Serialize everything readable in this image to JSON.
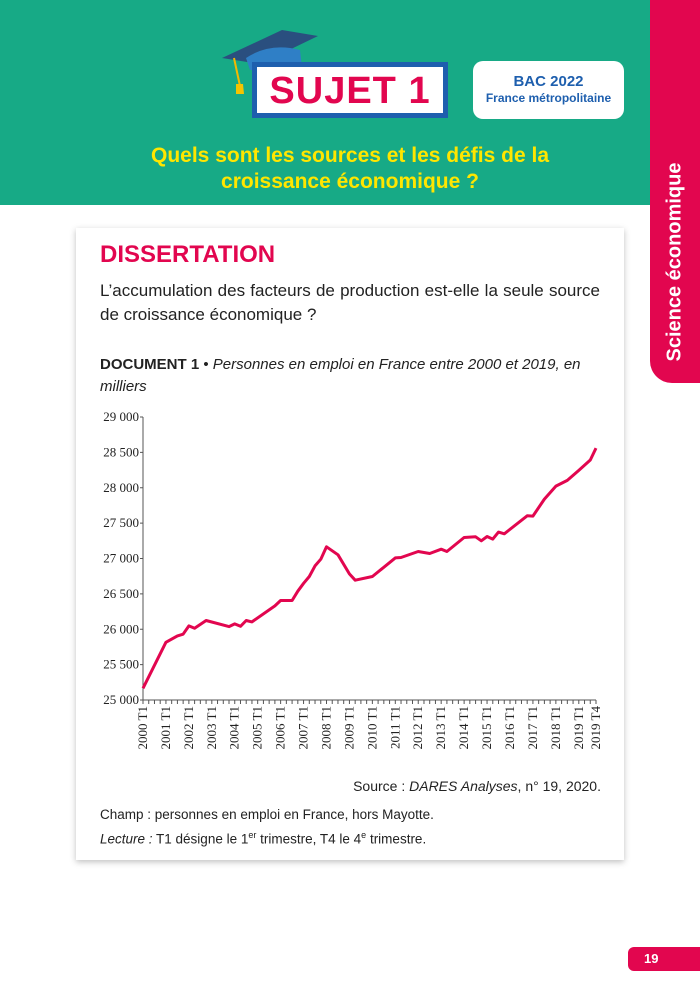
{
  "header": {
    "subject_label": "SUJET 1",
    "exam": "BAC 2022",
    "location": "France métropolitaine",
    "question": "Quels sont les sources et les défis de la croissance économique ?",
    "icon": "graduation-cap-icon"
  },
  "side_tab": {
    "label": "Science économique"
  },
  "colors": {
    "brand_green": "#17aa86",
    "accent_magenta": "#e2064f",
    "blue": "#1e5fae",
    "title_yellow": "#ffe600"
  },
  "exercise": {
    "type": "DISSERTATION",
    "prompt": "L’accumulation des facteurs de production est-elle la seule source de croissance économique ?"
  },
  "document": {
    "label": "DOCUMENT 1",
    "separator": " • ",
    "caption": "Personnes en emploi en France entre 2000 et 2019, en milliers",
    "source_prefix": "Source : ",
    "source_title": "DARES Analyses",
    "source_suffix": ", n° 19, 2020.",
    "champ": "Champ : personnes en emploi en France, hors Mayotte.",
    "lecture_label": "Lecture :",
    "lecture_text_1": " T1 désigne le 1",
    "lecture_sup_1": "er",
    "lecture_text_2": " trimestre, T4 le 4",
    "lecture_sup_2": "e",
    "lecture_text_3": " trimestre."
  },
  "chart_data": {
    "type": "line",
    "title": "",
    "xlabel": "",
    "ylabel": "",
    "ylim": [
      25000,
      29000
    ],
    "yticks": [
      25000,
      25500,
      26000,
      26500,
      27000,
      27500,
      28000,
      28500,
      29000
    ],
    "ytick_labels": [
      "25 000",
      "25 500",
      "26 000",
      "26 500",
      "27 000",
      "27 500",
      "28 000",
      "28 500",
      "29 000"
    ],
    "xtick_labels": [
      "2000 T1",
      "2001 T1",
      "2002 T1",
      "2003 T1",
      "2004 T1",
      "2005 T1",
      "2006 T1",
      "2007 T1",
      "2008 T1",
      "2009 T1",
      "2010 T1",
      "2011 T1",
      "2012 T1",
      "2013 T1",
      "2014 T1",
      "2015 T1",
      "2016 T1",
      "2017 T1",
      "2018 T1",
      "2019 T1",
      "2019 T4"
    ],
    "grid": false,
    "line_color": "#e2064f",
    "points": [
      {
        "x": "2000 T1",
        "y": 25165
      },
      {
        "x": "2001 T1",
        "y": 25816
      },
      {
        "x": "2001 T3",
        "y": 25906
      },
      {
        "x": "2001 T4",
        "y": 25930
      },
      {
        "x": "2002 T1",
        "y": 26047
      },
      {
        "x": "2002 T2",
        "y": 26014
      },
      {
        "x": "2002 T4",
        "y": 26123
      },
      {
        "x": "2003 T4",
        "y": 26038
      },
      {
        "x": "2004 T1",
        "y": 26075
      },
      {
        "x": "2004 T2",
        "y": 26042
      },
      {
        "x": "2004 T3",
        "y": 26123
      },
      {
        "x": "2004 T4",
        "y": 26104
      },
      {
        "x": "2005 T4",
        "y": 26330
      },
      {
        "x": "2006 T1",
        "y": 26406
      },
      {
        "x": "2006 T3",
        "y": 26406
      },
      {
        "x": "2006 T4",
        "y": 26538
      },
      {
        "x": "2007 T1",
        "y": 26650
      },
      {
        "x": "2007 T2",
        "y": 26745
      },
      {
        "x": "2007 T3",
        "y": 26896
      },
      {
        "x": "2007 T4",
        "y": 26990
      },
      {
        "x": "2008 T1",
        "y": 27165
      },
      {
        "x": "2008 T3",
        "y": 27052
      },
      {
        "x": "2009 T1",
        "y": 26783
      },
      {
        "x": "2009 T2",
        "y": 26693
      },
      {
        "x": "2010 T1",
        "y": 26745
      },
      {
        "x": "2011 T1",
        "y": 27009
      },
      {
        "x": "2011 T2",
        "y": 27014
      },
      {
        "x": "2012 T1",
        "y": 27099
      },
      {
        "x": "2012 T3",
        "y": 27070
      },
      {
        "x": "2013 T1",
        "y": 27132
      },
      {
        "x": "2013 T2",
        "y": 27099
      },
      {
        "x": "2014 T1",
        "y": 27297
      },
      {
        "x": "2014 T3",
        "y": 27307
      },
      {
        "x": "2014 T4",
        "y": 27250
      },
      {
        "x": "2015 T1",
        "y": 27311
      },
      {
        "x": "2015 T2",
        "y": 27274
      },
      {
        "x": "2015 T3",
        "y": 27373
      },
      {
        "x": "2015 T4",
        "y": 27349
      },
      {
        "x": "2016 T4",
        "y": 27604
      },
      {
        "x": "2017 T1",
        "y": 27599
      },
      {
        "x": "2017 T3",
        "y": 27840
      },
      {
        "x": "2018 T1",
        "y": 28024
      },
      {
        "x": "2018 T3",
        "y": 28104
      },
      {
        "x": "2019 T1",
        "y": 28245
      },
      {
        "x": "2019 T3",
        "y": 28392
      },
      {
        "x": "2019 T4",
        "y": 28561
      }
    ]
  },
  "footer": {
    "page_number": "19"
  }
}
